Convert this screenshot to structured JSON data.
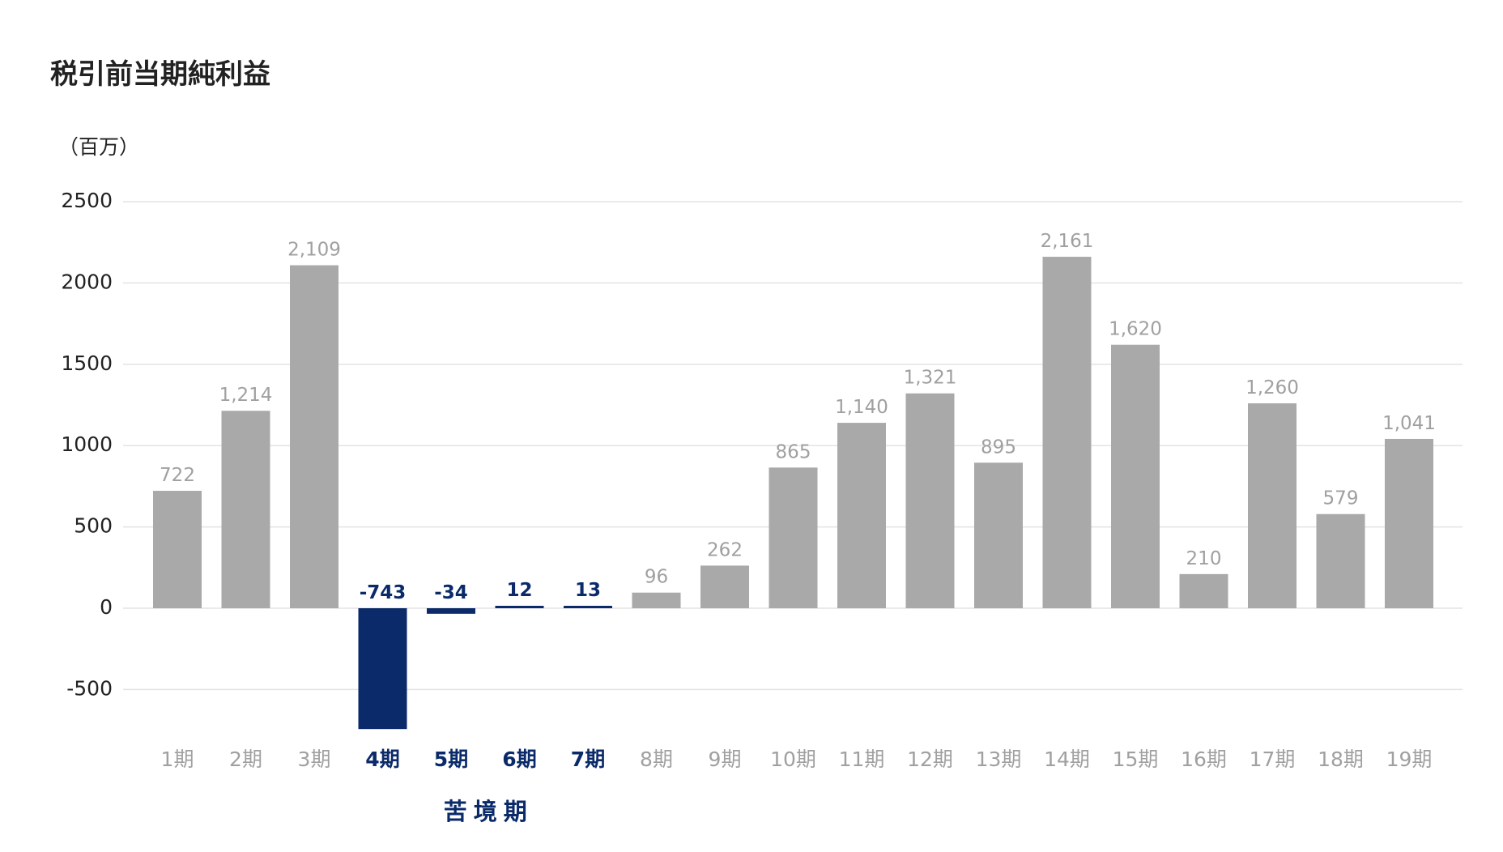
{
  "chart_data": {
    "type": "bar",
    "title": "税引前当期純利益",
    "unit_label": "（百万）",
    "categories": [
      "1期",
      "2期",
      "3期",
      "4期",
      "5期",
      "6期",
      "7期",
      "8期",
      "9期",
      "10期",
      "11期",
      "12期",
      "13期",
      "14期",
      "15期",
      "16期",
      "17期",
      "18期",
      "19期"
    ],
    "values": [
      722,
      1214,
      2109,
      -743,
      -34,
      12,
      13,
      96,
      262,
      865,
      1140,
      1321,
      895,
      2161,
      1620,
      210,
      1260,
      579,
      1041
    ],
    "value_labels": [
      "722",
      "1,214",
      "2,109",
      "-743",
      "-34",
      "12",
      "13",
      "96",
      "262",
      "865",
      "1,140",
      "1,321",
      "895",
      "2,161",
      "1,620",
      "210",
      "1,260",
      "579",
      "1,041"
    ],
    "highlight_categories": [
      "4期",
      "5期",
      "6期",
      "7期"
    ],
    "annotation": "苦境期",
    "ylim": [
      -700,
      2500
    ],
    "yticks": [
      2500,
      2000,
      1500,
      1000,
      500,
      0,
      -500
    ],
    "ytick_labels": [
      "2500",
      "2000",
      "1500",
      "1000",
      "500",
      "0",
      "-500"
    ],
    "xlabel": "",
    "ylabel": "",
    "grid": true,
    "legend": "none",
    "colors": {
      "normal_bar": "#a9a9a9",
      "highlight_bar": "#0b2a6a",
      "normal_label": "#a0a0a0",
      "highlight_label": "#0b2a6a",
      "grid": "#e3e3e3",
      "axis_text": "#222222"
    }
  }
}
